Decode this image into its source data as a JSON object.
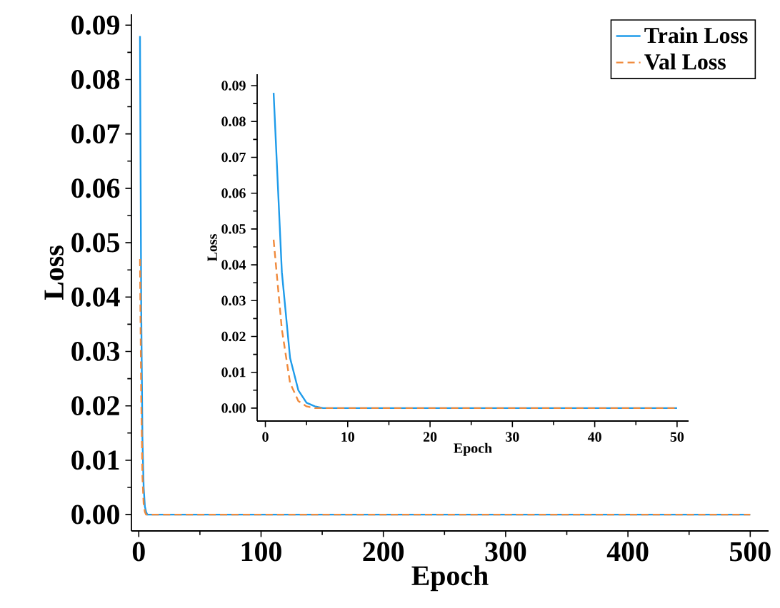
{
  "chart_data": [
    {
      "type": "line",
      "xlabel": "Epoch",
      "ylabel": "Loss",
      "legend": "top right",
      "grid": false,
      "x": [
        1,
        2,
        3,
        4,
        5,
        6,
        7,
        8,
        9,
        10,
        20,
        50,
        100,
        150,
        200,
        250,
        300,
        350,
        400,
        450,
        500
      ],
      "series": [
        {
          "name": "Train Loss",
          "color": "#1e9bea",
          "line_style": "solid",
          "values": [
            0.088,
            0.038,
            0.014,
            0.005,
            0.0015,
            0.0005,
            0,
            0,
            0,
            0,
            0,
            0,
            0,
            0,
            0,
            0,
            0,
            0,
            0,
            0,
            0
          ]
        },
        {
          "name": "Val Loss",
          "color": "#f08a3c",
          "line_style": "dashed",
          "values": [
            0.047,
            0.022,
            0.007,
            0.002,
            0.0005,
            0,
            0,
            0,
            0,
            0,
            0,
            0,
            0,
            0,
            0,
            0,
            0,
            0,
            0,
            0,
            0
          ]
        }
      ],
      "xlim": [
        -6,
        515
      ],
      "ylim": [
        -0.003,
        0.092
      ],
      "xticks": [
        0,
        100,
        200,
        300,
        400,
        500
      ],
      "yticks": [
        {
          "value": 0,
          "label": "0.00"
        },
        {
          "value": 0.01,
          "label": "0.01"
        },
        {
          "value": 0.02,
          "label": "0.02"
        },
        {
          "value": 0.03,
          "label": "0.03"
        },
        {
          "value": 0.04,
          "label": "0.04"
        },
        {
          "value": 0.05,
          "label": "0.05"
        },
        {
          "value": 0.06,
          "label": "0.06"
        },
        {
          "value": 0.07,
          "label": "0.07"
        },
        {
          "value": 0.08,
          "label": "0.08"
        },
        {
          "value": 0.09,
          "label": "0.09"
        }
      ]
    },
    {
      "type": "line",
      "xlabel": "Epoch",
      "ylabel": "Loss",
      "grid": false,
      "x": [
        1,
        2,
        3,
        4,
        5,
        6,
        7,
        8,
        9,
        10,
        20,
        30,
        40,
        50
      ],
      "series": [
        {
          "color": "#1e9bea",
          "line_style": "solid",
          "values": [
            0.088,
            0.038,
            0.014,
            0.005,
            0.0015,
            0.0005,
            0,
            0,
            0,
            0,
            0,
            0,
            0,
            0
          ]
        },
        {
          "color": "#f08a3c",
          "line_style": "dashed",
          "values": [
            0.047,
            0.022,
            0.007,
            0.002,
            0.0005,
            0,
            0,
            0,
            0,
            0,
            0,
            0,
            0,
            0
          ]
        }
      ],
      "xlim": [
        -1,
        51.4
      ],
      "ylim": [
        -0.0036,
        0.0932
      ],
      "xticks": [
        0,
        10,
        20,
        30,
        40,
        50
      ],
      "yticks": [
        {
          "value": 0,
          "label": "0.00"
        },
        {
          "value": 0.01,
          "label": "0.01"
        },
        {
          "value": 0.02,
          "label": "0.02"
        },
        {
          "value": 0.03,
          "label": "0.03"
        },
        {
          "value": 0.04,
          "label": "0.04"
        },
        {
          "value": 0.05,
          "label": "0.05"
        },
        {
          "value": 0.06,
          "label": "0.06"
        },
        {
          "value": 0.07,
          "label": "0.07"
        },
        {
          "value": 0.08,
          "label": "0.08"
        },
        {
          "value": 0.09,
          "label": "0.09"
        }
      ]
    }
  ]
}
